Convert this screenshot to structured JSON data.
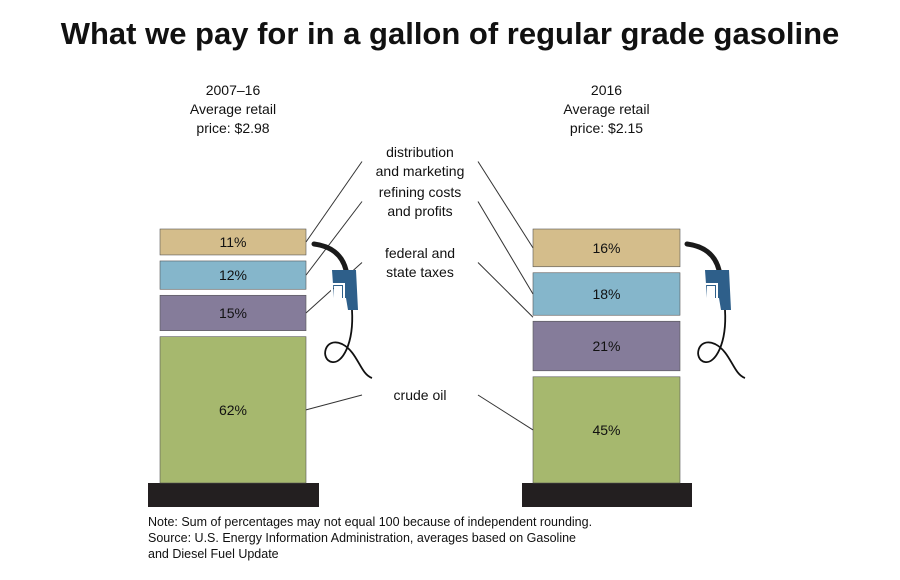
{
  "title": "What we pay for in a gallon of regular grade gasoline",
  "notes": {
    "line1": "Note: Sum of percentages may not equal 100 because of independent rounding.",
    "line2": "Source: U.S. Energy Information Administration, averages based on Gasoline",
    "line3": "and Diesel Fuel Update"
  },
  "chart_data": {
    "type": "bar",
    "stacked": true,
    "title": "What we pay for in a gallon of regular grade gasoline",
    "categories": [
      {
        "period": "2007–16",
        "label": "Average retail",
        "price": "price: $2.98"
      },
      {
        "period": "2016",
        "label": "Average retail",
        "price": "price: $2.15"
      }
    ],
    "series": [
      {
        "name": "crude oil",
        "label_lines": [
          "crude oil"
        ],
        "color": "#a6b86e",
        "values": [
          62,
          45
        ]
      },
      {
        "name": "federal and state taxes",
        "label_lines": [
          "federal and",
          "state taxes"
        ],
        "color": "#857c9a",
        "values": [
          15,
          21
        ]
      },
      {
        "name": "refining costs and profits",
        "label_lines": [
          "refining costs",
          "and profits"
        ],
        "color": "#85b6cb",
        "values": [
          12,
          18
        ]
      },
      {
        "name": "distribution and marketing",
        "label_lines": [
          "distribution",
          "and marketing"
        ],
        "color": "#d4bd8b",
        "values": [
          11,
          16
        ]
      }
    ],
    "value_format": "%",
    "colors": {
      "base": "#231f20",
      "pump": "#2e5f8a",
      "hose": "#111111"
    }
  }
}
